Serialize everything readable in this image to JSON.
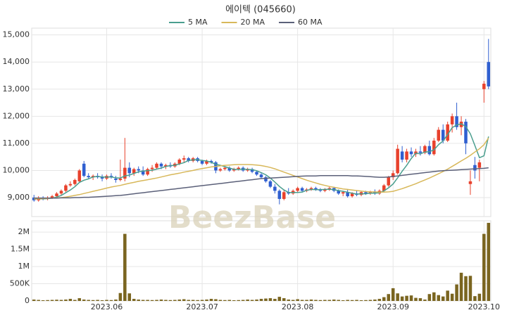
{
  "chart_data": {
    "type": "candlestick",
    "title": "에이텍 (045660)",
    "watermark": "BeezBase",
    "up_color": "#e8412c",
    "down_color": "#2f5fd0",
    "categories": [
      null,
      null,
      null,
      null,
      null,
      null,
      null,
      null,
      null,
      null,
      null,
      null,
      null,
      null,
      null,
      null,
      "2023.06",
      null,
      null,
      null,
      null,
      null,
      null,
      null,
      null,
      null,
      null,
      null,
      null,
      null,
      null,
      null,
      null,
      null,
      null,
      null,
      null,
      "2023.07",
      null,
      null,
      null,
      null,
      null,
      null,
      null,
      null,
      null,
      null,
      null,
      null,
      null,
      null,
      null,
      null,
      null,
      null,
      null,
      null,
      "2023.08",
      null,
      null,
      null,
      null,
      null,
      null,
      null,
      null,
      null,
      null,
      null,
      null,
      null,
      null,
      null,
      null,
      null,
      null,
      null,
      null,
      "2023.09",
      null,
      null,
      null,
      null,
      null,
      null,
      null,
      null,
      null,
      null,
      null,
      null,
      null,
      null,
      null,
      null,
      null,
      null,
      null,
      "2023.10",
      null
    ],
    "open": [
      9000,
      8900,
      9000,
      8950,
      9000,
      9050,
      9150,
      9250,
      9450,
      9500,
      9600,
      10250,
      9800,
      9750,
      9800,
      9750,
      9700,
      9800,
      9700,
      9650,
      9700,
      10100,
      9900,
      10050,
      10000,
      9850,
      10050,
      10100,
      10250,
      10150,
      10200,
      10150,
      10250,
      10400,
      10450,
      10350,
      10450,
      10350,
      10250,
      10350,
      10300,
      10000,
      10050,
      10100,
      10000,
      10050,
      10100,
      10000,
      10050,
      9950,
      9850,
      9750,
      9600,
      9400,
      9250,
      8950,
      9200,
      9150,
      9250,
      9350,
      9250,
      9300,
      9350,
      9300,
      9250,
      9300,
      9350,
      9250,
      9150,
      9200,
      9050,
      9150,
      9100,
      9200,
      9150,
      9200,
      9150,
      9250,
      9450,
      9750,
      9900,
      10700,
      10400,
      10700,
      10600,
      10700,
      10650,
      10900,
      10600,
      11100,
      11500,
      11100,
      11700,
      12000,
      11600,
      11800,
      9500,
      10200,
      10100,
      13000,
      14000
    ],
    "high": [
      9100,
      9050,
      9050,
      9050,
      9100,
      9200,
      9300,
      9500,
      9600,
      9700,
      10050,
      10350,
      9900,
      9850,
      9900,
      9850,
      9850,
      9900,
      9800,
      10400,
      11200,
      10300,
      10100,
      10150,
      10150,
      10100,
      10200,
      10300,
      10300,
      10250,
      10300,
      10300,
      10450,
      10550,
      10500,
      10500,
      10500,
      10400,
      10400,
      10400,
      10350,
      10100,
      10150,
      10150,
      10100,
      10150,
      10150,
      10100,
      10100,
      10000,
      9900,
      9800,
      9650,
      9500,
      9300,
      9300,
      9350,
      9300,
      9400,
      9400,
      9350,
      9400,
      9400,
      9350,
      9350,
      9400,
      9400,
      9300,
      9250,
      9300,
      9200,
      9250,
      9250,
      9250,
      9250,
      9300,
      9300,
      9500,
      9800,
      10000,
      10950,
      10900,
      10800,
      10850,
      10800,
      10900,
      10950,
      11100,
      11200,
      11600,
      11700,
      11800,
      12100,
      12500,
      12000,
      11900,
      10000,
      10500,
      10400,
      13300,
      14850
    ],
    "low": [
      8850,
      8850,
      8900,
      8900,
      8950,
      9000,
      9100,
      9200,
      9400,
      9450,
      9550,
      9750,
      9700,
      9650,
      9700,
      9600,
      9650,
      9700,
      9550,
      9600,
      9600,
      9750,
      9800,
      9900,
      9800,
      9800,
      9950,
      10050,
      10050,
      10050,
      10100,
      10100,
      10200,
      10300,
      10300,
      10300,
      10300,
      10200,
      10200,
      10250,
      9900,
      9950,
      10000,
      9950,
      9950,
      10000,
      9950,
      9950,
      9900,
      9800,
      9700,
      9550,
      9350,
      9150,
      8750,
      8900,
      9100,
      9100,
      9200,
      9200,
      9200,
      9250,
      9250,
      9200,
      9200,
      9250,
      9200,
      9100,
      9050,
      9000,
      9000,
      9050,
      9050,
      9100,
      9100,
      9100,
      9100,
      9200,
      9400,
      9650,
      9850,
      10300,
      10300,
      10500,
      10500,
      10550,
      10600,
      10550,
      10550,
      11050,
      11000,
      11050,
      11400,
      11500,
      11300,
      10600,
      9100,
      9700,
      9600,
      12500,
      13000
    ],
    "close": [
      8900,
      9000,
      8950,
      9000,
      9050,
      9150,
      9250,
      9450,
      9500,
      9650,
      10000,
      9800,
      9750,
      9800,
      9750,
      9700,
      9800,
      9750,
      9650,
      9700,
      10100,
      9900,
      10050,
      10000,
      9850,
      10050,
      10100,
      10250,
      10150,
      10200,
      10150,
      10250,
      10400,
      10450,
      10350,
      10450,
      10350,
      10250,
      10350,
      10300,
      10000,
      10050,
      10100,
      10000,
      10050,
      10100,
      10000,
      10050,
      9950,
      9850,
      9750,
      9600,
      9400,
      9250,
      8950,
      9200,
      9150,
      9250,
      9350,
      9250,
      9300,
      9350,
      9300,
      9250,
      9300,
      9350,
      9250,
      9150,
      9200,
      9050,
      9150,
      9100,
      9200,
      9150,
      9200,
      9150,
      9250,
      9450,
      9750,
      9900,
      10800,
      10400,
      10700,
      10600,
      10700,
      10650,
      10900,
      10600,
      11100,
      11500,
      11100,
      11700,
      12000,
      11600,
      11800,
      11000,
      9600,
      10000,
      10300,
      13200,
      13100
    ],
    "ylim": [
      8300,
      15250
    ],
    "yticks": [
      {
        "value": 9000,
        "label": "9,000"
      },
      {
        "value": 10000,
        "label": "10,000"
      },
      {
        "value": 11000,
        "label": "11,000"
      },
      {
        "value": 12000,
        "label": "12,000"
      },
      {
        "value": 13000,
        "label": "13,000"
      },
      {
        "value": 14000,
        "label": "14,000"
      },
      {
        "value": 15000,
        "label": "15,000"
      }
    ],
    "grid": true,
    "series": [
      {
        "name": "5 MA",
        "color": "#4a9e8e",
        "values": [
          8950,
          8950,
          8950,
          8960,
          8980,
          9020,
          9080,
          9180,
          9280,
          9400,
          9560,
          9640,
          9690,
          9760,
          9780,
          9760,
          9760,
          9760,
          9730,
          9720,
          9800,
          9830,
          9890,
          9950,
          9980,
          9990,
          10010,
          10050,
          10090,
          10150,
          10180,
          10190,
          10240,
          10290,
          10370,
          10390,
          10400,
          10370,
          10350,
          10300,
          10230,
          10190,
          10140,
          10090,
          10040,
          10040,
          10050,
          10040,
          10030,
          9990,
          9920,
          9840,
          9720,
          9570,
          9410,
          9280,
          9190,
          9190,
          9190,
          9200,
          9270,
          9300,
          9290,
          9290,
          9300,
          9310,
          9290,
          9260,
          9230,
          9200,
          9160,
          9130,
          9140,
          9140,
          9160,
          9160,
          9180,
          9250,
          9360,
          9500,
          9730,
          9970,
          10190,
          10440,
          10640,
          10610,
          10680,
          10690,
          10760,
          10950,
          11090,
          11320,
          11580,
          11680,
          11720,
          11620,
          11350,
          10920,
          10470,
          10540,
          11250
        ]
      },
      {
        "name": "20 MA",
        "color": "#d8b85a",
        "values": [
          8950,
          8950,
          8960,
          8970,
          8980,
          8990,
          9000,
          9020,
          9050,
          9080,
          9110,
          9150,
          9190,
          9230,
          9270,
          9310,
          9350,
          9390,
          9420,
          9450,
          9490,
          9530,
          9560,
          9600,
          9630,
          9660,
          9690,
          9720,
          9760,
          9800,
          9840,
          9870,
          9900,
          9940,
          9970,
          10000,
          10040,
          10070,
          10100,
          10130,
          10150,
          10170,
          10190,
          10200,
          10210,
          10220,
          10220,
          10220,
          10210,
          10200,
          10180,
          10150,
          10110,
          10060,
          10000,
          9940,
          9880,
          9820,
          9760,
          9700,
          9640,
          9590,
          9540,
          9490,
          9450,
          9410,
          9380,
          9350,
          9320,
          9300,
          9280,
          9260,
          9240,
          9220,
          9210,
          9210,
          9200,
          9200,
          9210,
          9230,
          9280,
          9330,
          9390,
          9450,
          9510,
          9580,
          9650,
          9720,
          9800,
          9880,
          9960,
          10050,
          10150,
          10250,
          10350,
          10450,
          10560,
          10680,
          10800,
          10950,
          11200
        ]
      },
      {
        "name": "60 MA",
        "color": "#5b6079",
        "values": [
          8980,
          8980,
          8980,
          8980,
          8980,
          8980,
          8990,
          8990,
          8990,
          9000,
          9000,
          9010,
          9010,
          9020,
          9030,
          9040,
          9050,
          9060,
          9070,
          9080,
          9100,
          9120,
          9140,
          9160,
          9180,
          9200,
          9220,
          9240,
          9260,
          9280,
          9300,
          9320,
          9340,
          9360,
          9380,
          9400,
          9420,
          9440,
          9460,
          9480,
          9500,
          9520,
          9540,
          9560,
          9580,
          9600,
          9620,
          9640,
          9660,
          9680,
          9700,
          9710,
          9720,
          9730,
          9740,
          9750,
          9760,
          9770,
          9780,
          9790,
          9800,
          9800,
          9800,
          9810,
          9810,
          9810,
          9810,
          9810,
          9810,
          9810,
          9800,
          9800,
          9790,
          9780,
          9770,
          9760,
          9750,
          9750,
          9760,
          9780,
          9800,
          9820,
          9840,
          9860,
          9880,
          9900,
          9920,
          9940,
          9960,
          9980,
          9990,
          10000,
          10010,
          10020,
          10030,
          10040,
          10050,
          10060,
          10070,
          10080,
          10100
        ]
      }
    ],
    "volume": {
      "color": "#7a6520",
      "values": [
        40000,
        30000,
        20000,
        25000,
        30000,
        35000,
        30000,
        40000,
        60000,
        30000,
        80000,
        40000,
        30000,
        25000,
        30000,
        20000,
        30000,
        25000,
        40000,
        230000,
        1950000,
        220000,
        60000,
        40000,
        30000,
        30000,
        25000,
        30000,
        40000,
        30000,
        25000,
        30000,
        40000,
        50000,
        30000,
        30000,
        25000,
        30000,
        40000,
        60000,
        50000,
        30000,
        25000,
        30000,
        20000,
        25000,
        30000,
        40000,
        30000,
        40000,
        60000,
        70000,
        80000,
        60000,
        120000,
        80000,
        40000,
        30000,
        50000,
        30000,
        30000,
        40000,
        30000,
        25000,
        30000,
        30000,
        40000,
        30000,
        20000,
        30000,
        25000,
        30000,
        20000,
        25000,
        30000,
        40000,
        60000,
        110000,
        200000,
        370000,
        220000,
        130000,
        150000,
        160000,
        90000,
        80000,
        40000,
        200000,
        250000,
        170000,
        130000,
        300000,
        210000,
        480000,
        820000,
        720000,
        730000,
        140000,
        210000,
        1950000,
        2270000
      ],
      "ylim": [
        0,
        2330000
      ],
      "yticks": [
        0,
        {
          "value": 500000,
          "label": "500K"
        },
        {
          "value": 1000000,
          "label": "1M"
        },
        {
          "value": 1500000,
          "label": "1.5M"
        },
        {
          "value": 2000000,
          "label": "2M"
        }
      ]
    }
  }
}
